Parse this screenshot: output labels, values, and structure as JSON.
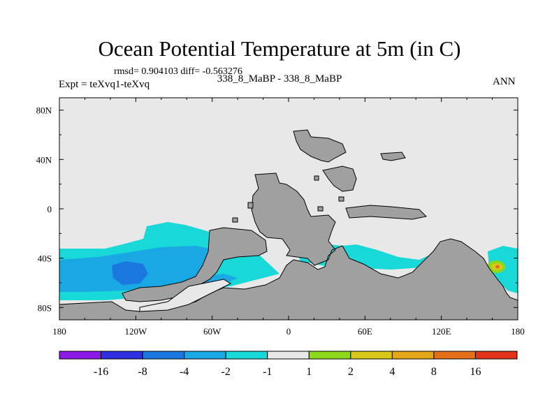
{
  "chart_data": {
    "type": "heatmap",
    "title": "Ocean Potential Temperature at 5m (in C)",
    "stats_text": "rmsd= 0.904103 diff= -0.563276",
    "case_text": "338_8_MaBP - 338_8_MaBP",
    "expt_text": "Expt = teXvq1-teXvq",
    "season": "ANN",
    "xlim": [
      -180,
      180
    ],
    "ylim": [
      -90,
      90
    ],
    "x_ticks": [
      {
        "value": -180,
        "label": "180"
      },
      {
        "value": -120,
        "label": "120W"
      },
      {
        "value": -60,
        "label": "60W"
      },
      {
        "value": 0,
        "label": "0"
      },
      {
        "value": 60,
        "label": "60E"
      },
      {
        "value": 120,
        "label": "120E"
      },
      {
        "value": 180,
        "label": "180"
      }
    ],
    "y_ticks": [
      {
        "value": 80,
        "label": "80N"
      },
      {
        "value": 40,
        "label": "40N"
      },
      {
        "value": 0,
        "label": "0"
      },
      {
        "value": -40,
        "label": "40S"
      },
      {
        "value": -80,
        "label": "80S"
      }
    ],
    "colorbar": {
      "levels": [
        "-16",
        "-8",
        "-4",
        "-2",
        "-1",
        "1",
        "2",
        "4",
        "8",
        "16"
      ],
      "colors": [
        "#8c1ae6",
        "#2f2fe0",
        "#1a78de",
        "#19a8e3",
        "#19d8d8",
        "#e8e8e8",
        "#8cd81a",
        "#d8c81a",
        "#e3a619",
        "#e37019",
        "#e3341a"
      ]
    },
    "land_color": "#a0a0a0",
    "background_color": "#e8e8e8"
  }
}
